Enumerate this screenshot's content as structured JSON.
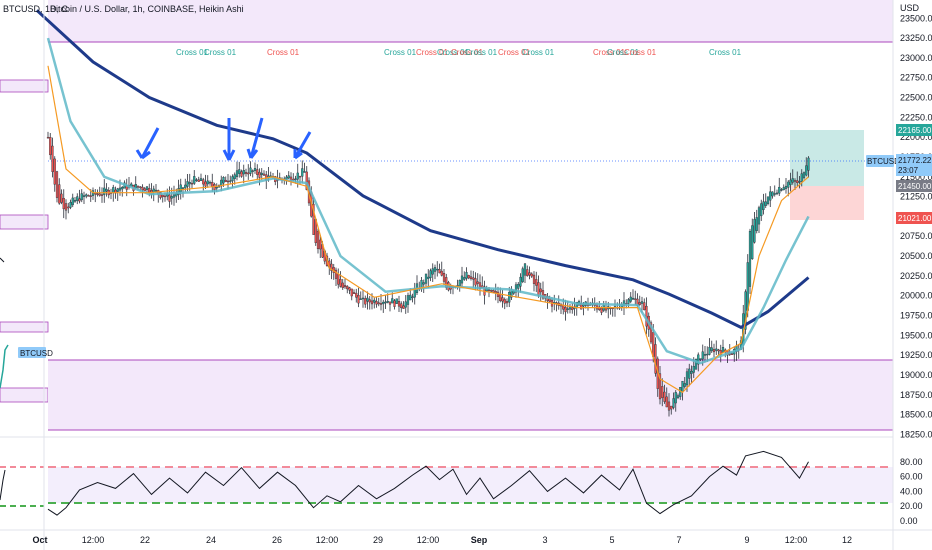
{
  "header": {
    "title": "BTCUSD, 1D, C",
    "subtitle": "Bitcoin / U.S. Dollar, 1h, COINBASE, Heikin Ashi"
  },
  "price_axis": {
    "currency": "USD",
    "ticks": [
      "23500.00",
      "23250.00",
      "23000.00",
      "22750.00",
      "22500.00",
      "22250.00",
      "22000.00",
      "21750.00",
      "21500.00",
      "21250.00",
      "21000.00",
      "20750.00",
      "20500.00",
      "20250.00",
      "20000.00",
      "19750.00",
      "19500.00",
      "19250.00",
      "19000.00",
      "18750.00",
      "18500.00",
      "18250.00"
    ]
  },
  "rsi_axis": {
    "ticks": [
      "80.00",
      "60.00",
      "40.00",
      "20.00",
      "0.00"
    ]
  },
  "time_axis": {
    "ticks": [
      "Oct",
      "12:00",
      "22",
      "24",
      "26",
      "12:00",
      "29",
      "12:00",
      "Sep",
      "3",
      "5",
      "7",
      "9",
      "12:00",
      "12"
    ]
  },
  "tags": {
    "target": "22165.00",
    "last_price": "21772.22",
    "countdown": "23:07",
    "entry": "21450.00",
    "stop": "21021.00",
    "symbol_right": "BTCUSD",
    "symbol_left": "BTCUSD"
  },
  "cross_labels": [
    {
      "text": "Cross 01",
      "color": "#26a69a"
    },
    {
      "text": "Cross 01",
      "color": "#26a69a"
    },
    {
      "text": "Cross 01",
      "color": "#ef5350"
    },
    {
      "text": "Cross 01",
      "color": "#26a69a"
    },
    {
      "text": "Cross 01",
      "color": "#ef5350"
    },
    {
      "text": "Cross 01",
      "color": "#26a69a"
    },
    {
      "text": "Cross 01",
      "color": "#ef5350"
    },
    {
      "text": "Cross 01",
      "color": "#26a69a"
    },
    {
      "text": "Cross 01",
      "color": "#ef5350"
    },
    {
      "text": "Cross 01",
      "color": "#26a69a"
    },
    {
      "text": "Cross 01",
      "color": "#ef5350"
    },
    {
      "text": "Cross 01",
      "color": "#26a69a"
    },
    {
      "text": "Cross 01",
      "color": "#ef5350"
    },
    {
      "text": "Cross 01",
      "color": "#26a69a"
    }
  ],
  "colors": {
    "bull": "#26a69a",
    "bear": "#ef5350",
    "ema_slow": "#1e3a8a",
    "ema_mid": "#5fb8c8",
    "ema_fast": "#f59a23",
    "zone_fill": "#f3e8fa",
    "zone_line": "#ab47bc",
    "arrow": "#2962ff",
    "rsi_line": "#131722",
    "rsi_upper": "#f28b9a",
    "rsi_lower": "#4caf50",
    "target_fill": "#b2dfdb",
    "stop_fill": "#fdd6d6"
  },
  "chart_data": {
    "type": "candlestick",
    "symbol": "BTCUSD",
    "timeframe": "1h",
    "exchange": "COINBASE",
    "style": "Heikin Ashi",
    "ylim": [
      18230,
      23680
    ],
    "rsi_ylim": [
      0,
      100
    ],
    "rsi_levels": [
      70,
      30
    ],
    "price_path": [
      {
        "x": 0,
        "y": 22000
      },
      {
        "x": 4,
        "y": 21220
      },
      {
        "x": 8,
        "y": 21120
      },
      {
        "x": 14,
        "y": 21240
      },
      {
        "x": 24,
        "y": 21300
      },
      {
        "x": 34,
        "y": 21380
      },
      {
        "x": 44,
        "y": 21360
      },
      {
        "x": 54,
        "y": 21230
      },
      {
        "x": 64,
        "y": 21460
      },
      {
        "x": 74,
        "y": 21380
      },
      {
        "x": 82,
        "y": 21520
      },
      {
        "x": 90,
        "y": 21580
      },
      {
        "x": 100,
        "y": 21460
      },
      {
        "x": 108,
        "y": 21500
      },
      {
        "x": 114,
        "y": 21560
      },
      {
        "x": 118,
        "y": 20750
      },
      {
        "x": 124,
        "y": 20420
      },
      {
        "x": 130,
        "y": 20120
      },
      {
        "x": 140,
        "y": 19920
      },
      {
        "x": 150,
        "y": 19950
      },
      {
        "x": 158,
        "y": 19880
      },
      {
        "x": 164,
        "y": 20100
      },
      {
        "x": 172,
        "y": 20350
      },
      {
        "x": 178,
        "y": 20100
      },
      {
        "x": 186,
        "y": 20250
      },
      {
        "x": 194,
        "y": 20050
      },
      {
        "x": 204,
        "y": 19950
      },
      {
        "x": 212,
        "y": 20350
      },
      {
        "x": 220,
        "y": 19950
      },
      {
        "x": 230,
        "y": 19840
      },
      {
        "x": 240,
        "y": 19900
      },
      {
        "x": 250,
        "y": 19800
      },
      {
        "x": 258,
        "y": 19980
      },
      {
        "x": 264,
        "y": 19900
      },
      {
        "x": 268,
        "y": 19420
      },
      {
        "x": 272,
        "y": 18700
      },
      {
        "x": 276,
        "y": 18560
      },
      {
        "x": 282,
        "y": 18900
      },
      {
        "x": 290,
        "y": 19250
      },
      {
        "x": 296,
        "y": 19330
      },
      {
        "x": 304,
        "y": 19280
      },
      {
        "x": 308,
        "y": 19380
      },
      {
        "x": 312,
        "y": 20800
      },
      {
        "x": 318,
        "y": 21200
      },
      {
        "x": 324,
        "y": 21350
      },
      {
        "x": 330,
        "y": 21450
      },
      {
        "x": 334,
        "y": 21420
      },
      {
        "x": 338,
        "y": 21780
      }
    ],
    "ema_slow_path": [
      {
        "x": -5,
        "y": 23600
      },
      {
        "x": 20,
        "y": 22950
      },
      {
        "x": 45,
        "y": 22500
      },
      {
        "x": 75,
        "y": 22150
      },
      {
        "x": 100,
        "y": 21980
      },
      {
        "x": 115,
        "y": 21800
      },
      {
        "x": 140,
        "y": 21260
      },
      {
        "x": 170,
        "y": 20820
      },
      {
        "x": 200,
        "y": 20580
      },
      {
        "x": 230,
        "y": 20380
      },
      {
        "x": 260,
        "y": 20200
      },
      {
        "x": 276,
        "y": 20020
      },
      {
        "x": 295,
        "y": 19780
      },
      {
        "x": 308,
        "y": 19600
      },
      {
        "x": 320,
        "y": 19800
      },
      {
        "x": 338,
        "y": 20230
      }
    ],
    "ema_mid_path": [
      {
        "x": 0,
        "y": 23250
      },
      {
        "x": 10,
        "y": 22200
      },
      {
        "x": 25,
        "y": 21500
      },
      {
        "x": 45,
        "y": 21280
      },
      {
        "x": 75,
        "y": 21320
      },
      {
        "x": 100,
        "y": 21480
      },
      {
        "x": 115,
        "y": 21420
      },
      {
        "x": 130,
        "y": 20500
      },
      {
        "x": 150,
        "y": 20050
      },
      {
        "x": 175,
        "y": 20120
      },
      {
        "x": 205,
        "y": 20080
      },
      {
        "x": 235,
        "y": 19900
      },
      {
        "x": 262,
        "y": 19880
      },
      {
        "x": 275,
        "y": 19300
      },
      {
        "x": 290,
        "y": 19150
      },
      {
        "x": 308,
        "y": 19330
      },
      {
        "x": 318,
        "y": 19850
      },
      {
        "x": 328,
        "y": 20450
      },
      {
        "x": 338,
        "y": 21000
      }
    ],
    "ema_fast_path": [
      {
        "x": 0,
        "y": 22900
      },
      {
        "x": 8,
        "y": 21600
      },
      {
        "x": 20,
        "y": 21300
      },
      {
        "x": 45,
        "y": 21300
      },
      {
        "x": 75,
        "y": 21380
      },
      {
        "x": 100,
        "y": 21500
      },
      {
        "x": 115,
        "y": 21380
      },
      {
        "x": 125,
        "y": 20350
      },
      {
        "x": 145,
        "y": 19980
      },
      {
        "x": 175,
        "y": 20150
      },
      {
        "x": 205,
        "y": 20000
      },
      {
        "x": 235,
        "y": 19850
      },
      {
        "x": 262,
        "y": 19850
      },
      {
        "x": 272,
        "y": 18950
      },
      {
        "x": 282,
        "y": 18780
      },
      {
        "x": 298,
        "y": 19250
      },
      {
        "x": 308,
        "y": 19400
      },
      {
        "x": 316,
        "y": 20500
      },
      {
        "x": 326,
        "y": 21200
      },
      {
        "x": 338,
        "y": 21500
      }
    ],
    "rsi_path": [
      {
        "x": 0,
        "y": 16
      },
      {
        "x": 4,
        "y": 8
      },
      {
        "x": 8,
        "y": 18
      },
      {
        "x": 14,
        "y": 42
      },
      {
        "x": 22,
        "y": 52
      },
      {
        "x": 30,
        "y": 44
      },
      {
        "x": 38,
        "y": 64
      },
      {
        "x": 46,
        "y": 36
      },
      {
        "x": 54,
        "y": 58
      },
      {
        "x": 62,
        "y": 38
      },
      {
        "x": 70,
        "y": 66
      },
      {
        "x": 78,
        "y": 48
      },
      {
        "x": 86,
        "y": 72
      },
      {
        "x": 94,
        "y": 44
      },
      {
        "x": 102,
        "y": 66
      },
      {
        "x": 110,
        "y": 48
      },
      {
        "x": 118,
        "y": 18
      },
      {
        "x": 124,
        "y": 34
      },
      {
        "x": 130,
        "y": 26
      },
      {
        "x": 138,
        "y": 48
      },
      {
        "x": 146,
        "y": 30
      },
      {
        "x": 154,
        "y": 44
      },
      {
        "x": 162,
        "y": 62
      },
      {
        "x": 168,
        "y": 74
      },
      {
        "x": 174,
        "y": 56
      },
      {
        "x": 180,
        "y": 70
      },
      {
        "x": 186,
        "y": 36
      },
      {
        "x": 192,
        "y": 58
      },
      {
        "x": 198,
        "y": 30
      },
      {
        "x": 206,
        "y": 48
      },
      {
        "x": 214,
        "y": 68
      },
      {
        "x": 222,
        "y": 40
      },
      {
        "x": 230,
        "y": 58
      },
      {
        "x": 238,
        "y": 38
      },
      {
        "x": 246,
        "y": 62
      },
      {
        "x": 254,
        "y": 42
      },
      {
        "x": 260,
        "y": 70
      },
      {
        "x": 266,
        "y": 24
      },
      {
        "x": 272,
        "y": 10
      },
      {
        "x": 278,
        "y": 22
      },
      {
        "x": 286,
        "y": 34
      },
      {
        "x": 294,
        "y": 60
      },
      {
        "x": 300,
        "y": 74
      },
      {
        "x": 306,
        "y": 62
      },
      {
        "x": 310,
        "y": 88
      },
      {
        "x": 318,
        "y": 94
      },
      {
        "x": 326,
        "y": 86
      },
      {
        "x": 330,
        "y": 72
      },
      {
        "x": 334,
        "y": 58
      },
      {
        "x": 338,
        "y": 80
      }
    ]
  }
}
